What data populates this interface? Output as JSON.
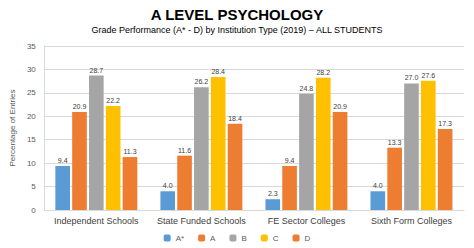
{
  "chart_data": {
    "type": "bar",
    "title": "A LEVEL PSYCHOLOGY",
    "subtitle": "Grade Performance (A* - D) by Institution Type (2019) – ALL STUDENTS",
    "y_label": "Percentage of Entries",
    "categories": [
      "Independent Schools",
      "State Funded Schools",
      "FE Sector Colleges",
      "Sixth Form Colleges"
    ],
    "series": [
      {
        "name": "A*",
        "color": "#5b9bd5",
        "values": [
          9.4,
          4.0,
          2.3,
          4.0
        ],
        "value_labels": [
          "9.4",
          "4.0",
          "2.3",
          "4.0"
        ]
      },
      {
        "name": "A",
        "color": "#ed7d31",
        "values": [
          20.9,
          11.6,
          9.4,
          13.3
        ],
        "value_labels": [
          "20.9",
          "11.6",
          "9.4",
          "13.3"
        ]
      },
      {
        "name": "B",
        "color": "#a5a5a5",
        "values": [
          28.7,
          26.2,
          24.8,
          27.0
        ],
        "value_labels": [
          "28.7",
          "26.2",
          "24.8",
          "27.0"
        ]
      },
      {
        "name": "C",
        "color": "#ffc000",
        "values": [
          22.2,
          28.4,
          28.2,
          27.6
        ],
        "value_labels": [
          "22.2",
          "28.4",
          "28.2",
          "27.6"
        ]
      },
      {
        "name": "D",
        "color": "#ed7d31",
        "values": [
          11.3,
          18.4,
          20.9,
          17.3
        ],
        "value_labels": [
          "11.3",
          "18.4",
          "20.9",
          "17.3"
        ]
      }
    ],
    "ylim": [
      0,
      35
    ],
    "yticks": [
      0,
      5,
      10,
      15,
      20,
      25,
      30,
      35
    ],
    "grid": true,
    "legend": "bottom",
    "data_labels": true
  }
}
